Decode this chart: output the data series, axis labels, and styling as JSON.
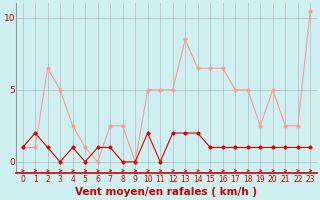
{
  "x": [
    0,
    1,
    2,
    3,
    4,
    5,
    6,
    7,
    8,
    9,
    10,
    11,
    12,
    13,
    14,
    15,
    16,
    17,
    18,
    19,
    20,
    21,
    22,
    23
  ],
  "wind_avg": [
    1,
    2,
    1,
    0,
    1,
    0,
    1,
    1,
    0,
    0,
    2,
    0,
    2,
    2,
    2,
    1,
    1,
    1,
    1,
    1,
    1,
    1,
    1,
    1
  ],
  "wind_gust": [
    1,
    1,
    6.5,
    5,
    2.5,
    1,
    0,
    2.5,
    2.5,
    0,
    5,
    5,
    5,
    8.5,
    6.5,
    6.5,
    6.5,
    5,
    5,
    2.5,
    5,
    2.5,
    2.5,
    10.5
  ],
  "xlabel": "Vent moyen/en rafales ( km/h )",
  "ylim": [
    -0.8,
    11.0
  ],
  "yticks": [
    0,
    5,
    10
  ],
  "xticks": [
    0,
    1,
    2,
    3,
    4,
    5,
    6,
    7,
    8,
    9,
    10,
    11,
    12,
    13,
    14,
    15,
    16,
    17,
    18,
    19,
    20,
    21,
    22,
    23
  ],
  "bg_color": "#cff0f0",
  "grid_color": "#aaaaaa",
  "line_avg_color": "#dd0000",
  "line_gust_color": "#ff9999",
  "marker_size": 2.5,
  "xlabel_fontsize": 7.5,
  "tick_fontsize": 5.5
}
